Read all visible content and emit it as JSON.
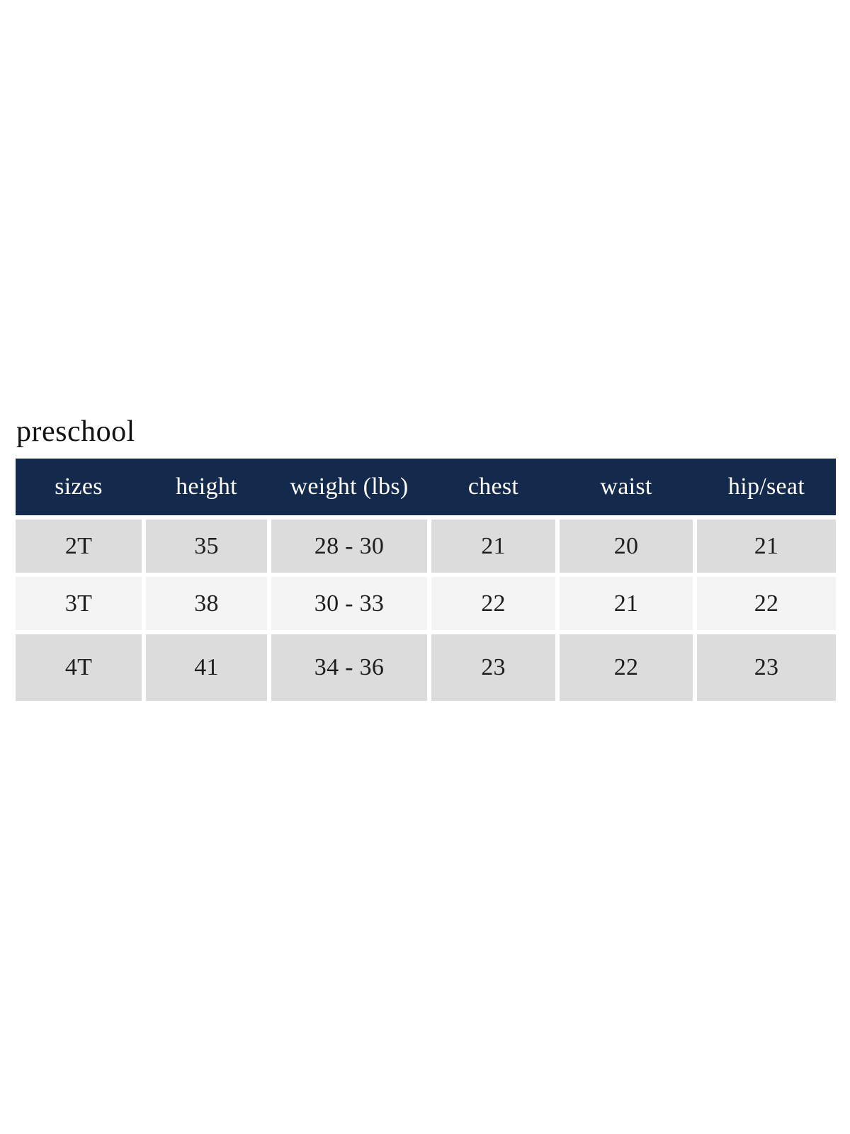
{
  "title": "preschool",
  "colors": {
    "header_bg": "#142A4D",
    "header_text": "#FFFFFF",
    "row_dark_bg": "#DCDCDC",
    "row_light_bg": "#F4F4F4",
    "cell_text": "#1E1E1E",
    "title_text": "#121212",
    "page_bg": "#FFFFFF"
  },
  "chart_data": {
    "type": "table",
    "title": "preschool",
    "columns": [
      "sizes",
      "height",
      "weight (lbs)",
      "chest",
      "waist",
      "hip/seat"
    ],
    "rows": [
      [
        "2T",
        "35",
        "28 - 30",
        "21",
        "20",
        "21"
      ],
      [
        "3T",
        "38",
        "30 - 33",
        "22",
        "21",
        "22"
      ],
      [
        "4T",
        "41",
        "34 - 36",
        "23",
        "22",
        "23"
      ]
    ],
    "layout": {
      "striping": [
        "dark",
        "light",
        "dark"
      ],
      "header_style": "solid navy band, no column gutters",
      "body_style": "white 6px gutters between cells and rows"
    }
  }
}
